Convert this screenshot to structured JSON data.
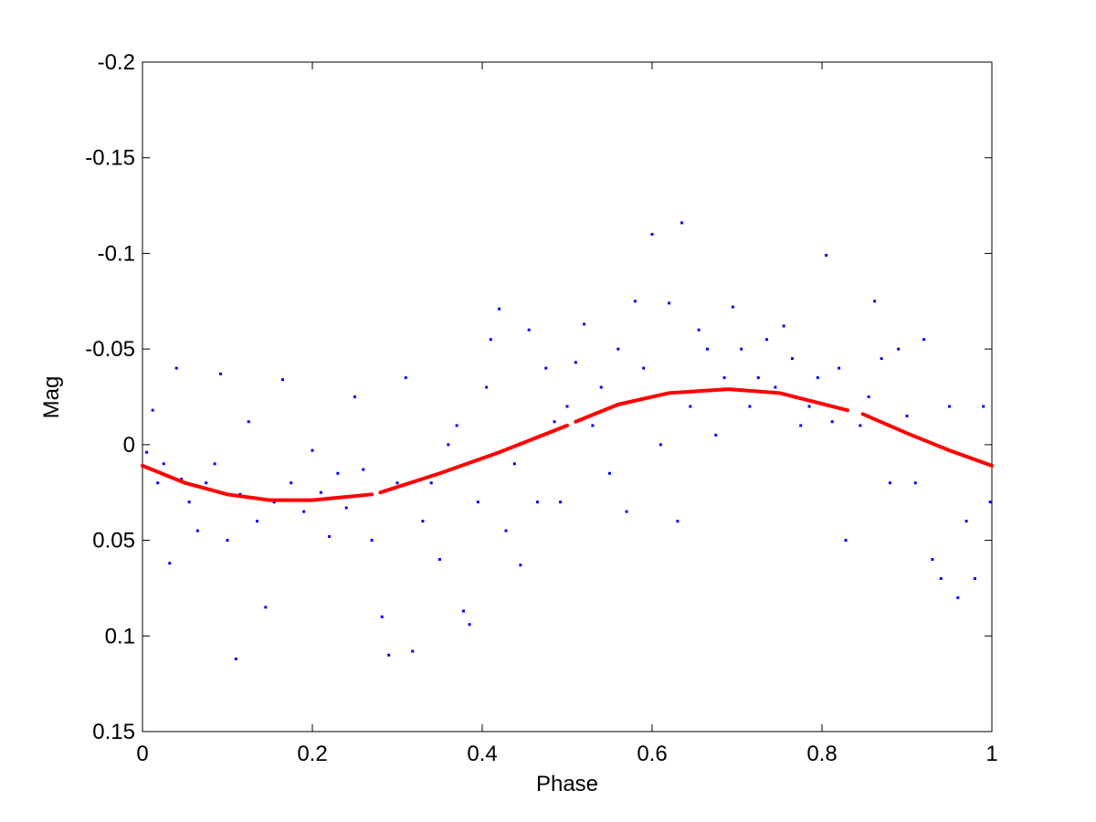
{
  "chart_data": {
    "type": "scatter",
    "title": "",
    "xlabel": "Phase",
    "ylabel": "Mag",
    "xlim": [
      0,
      1
    ],
    "ylim": [
      -0.2,
      0.15
    ],
    "y_inverted": true,
    "grid": false,
    "x_ticks": [
      0,
      0.2,
      0.4,
      0.6,
      0.8,
      1
    ],
    "x_tick_labels": [
      "0",
      "0.2",
      "0.4",
      "0.6",
      "0.8",
      "1"
    ],
    "y_ticks": [
      -0.2,
      -0.15,
      -0.1,
      -0.05,
      0,
      0.05,
      0.1,
      0.15
    ],
    "y_tick_labels": [
      "-0.2",
      "-0.15",
      "-0.1",
      "-0.05",
      "0",
      "0.05",
      "0.1",
      "0.15"
    ],
    "series": [
      {
        "kind": "scatter",
        "color": "#0000ff",
        "points": [
          [
            0.005,
            0.004
          ],
          [
            0.012,
            -0.018
          ],
          [
            0.018,
            0.02
          ],
          [
            0.025,
            0.01
          ],
          [
            0.032,
            0.062
          ],
          [
            0.04,
            -0.04
          ],
          [
            0.046,
            0.018
          ],
          [
            0.055,
            0.03
          ],
          [
            0.065,
            0.045
          ],
          [
            0.075,
            0.02
          ],
          [
            0.085,
            0.01
          ],
          [
            0.092,
            -0.037
          ],
          [
            0.1,
            0.05
          ],
          [
            0.11,
            0.112
          ],
          [
            0.115,
            0.026
          ],
          [
            0.125,
            -0.012
          ],
          [
            0.135,
            0.04
          ],
          [
            0.145,
            0.085
          ],
          [
            0.155,
            0.03
          ],
          [
            0.165,
            -0.034
          ],
          [
            0.175,
            0.02
          ],
          [
            0.19,
            0.035
          ],
          [
            0.2,
            0.003
          ],
          [
            0.21,
            0.025
          ],
          [
            0.22,
            0.048
          ],
          [
            0.23,
            0.015
          ],
          [
            0.24,
            0.033
          ],
          [
            0.25,
            -0.025
          ],
          [
            0.26,
            0.013
          ],
          [
            0.27,
            0.05
          ],
          [
            0.282,
            0.09
          ],
          [
            0.29,
            0.11
          ],
          [
            0.3,
            0.02
          ],
          [
            0.31,
            -0.035
          ],
          [
            0.318,
            0.108
          ],
          [
            0.33,
            0.04
          ],
          [
            0.34,
            0.02
          ],
          [
            0.35,
            0.06
          ],
          [
            0.36,
            0.0
          ],
          [
            0.37,
            -0.01
          ],
          [
            0.378,
            0.087
          ],
          [
            0.385,
            0.094
          ],
          [
            0.395,
            0.03
          ],
          [
            0.405,
            -0.03
          ],
          [
            0.41,
            -0.055
          ],
          [
            0.42,
            -0.071
          ],
          [
            0.428,
            0.045
          ],
          [
            0.438,
            0.01
          ],
          [
            0.445,
            0.063
          ],
          [
            0.455,
            -0.06
          ],
          [
            0.465,
            0.03
          ],
          [
            0.475,
            -0.04
          ],
          [
            0.485,
            -0.012
          ],
          [
            0.492,
            0.03
          ],
          [
            0.5,
            -0.02
          ],
          [
            0.51,
            -0.043
          ],
          [
            0.52,
            -0.063
          ],
          [
            0.53,
            -0.01
          ],
          [
            0.54,
            -0.03
          ],
          [
            0.55,
            0.015
          ],
          [
            0.56,
            -0.05
          ],
          [
            0.57,
            0.035
          ],
          [
            0.58,
            -0.075
          ],
          [
            0.59,
            -0.04
          ],
          [
            0.6,
            -0.11
          ],
          [
            0.61,
            0.0
          ],
          [
            0.62,
            -0.074
          ],
          [
            0.63,
            0.04
          ],
          [
            0.635,
            -0.116
          ],
          [
            0.645,
            -0.02
          ],
          [
            0.655,
            -0.06
          ],
          [
            0.665,
            -0.05
          ],
          [
            0.675,
            -0.005
          ],
          [
            0.685,
            -0.035
          ],
          [
            0.695,
            -0.072
          ],
          [
            0.705,
            -0.05
          ],
          [
            0.715,
            -0.02
          ],
          [
            0.725,
            -0.035
          ],
          [
            0.735,
            -0.055
          ],
          [
            0.745,
            -0.03
          ],
          [
            0.755,
            -0.062
          ],
          [
            0.765,
            -0.045
          ],
          [
            0.775,
            -0.01
          ],
          [
            0.785,
            -0.02
          ],
          [
            0.795,
            -0.035
          ],
          [
            0.805,
            -0.099
          ],
          [
            0.812,
            -0.012
          ],
          [
            0.82,
            -0.04
          ],
          [
            0.828,
            0.05
          ],
          [
            0.845,
            -0.01
          ],
          [
            0.855,
            -0.025
          ],
          [
            0.862,
            -0.075
          ],
          [
            0.87,
            -0.045
          ],
          [
            0.88,
            0.02
          ],
          [
            0.89,
            -0.05
          ],
          [
            0.9,
            -0.015
          ],
          [
            0.91,
            0.02
          ],
          [
            0.92,
            -0.055
          ],
          [
            0.93,
            0.06
          ],
          [
            0.94,
            0.07
          ],
          [
            0.95,
            -0.02
          ],
          [
            0.96,
            0.08
          ],
          [
            0.97,
            0.04
          ],
          [
            0.98,
            0.07
          ],
          [
            0.99,
            -0.02
          ],
          [
            0.998,
            0.03
          ]
        ]
      },
      {
        "kind": "line",
        "color": "#ff0000",
        "segments": [
          [
            [
              0,
              0.011
            ],
            [
              0.05,
              0.02
            ],
            [
              0.1,
              0.026
            ],
            [
              0.15,
              0.029
            ],
            [
              0.2,
              0.029
            ],
            [
              0.27,
              0.026
            ]
          ],
          [
            [
              0.28,
              0.025
            ],
            [
              0.35,
              0.015
            ],
            [
              0.42,
              0.004
            ],
            [
              0.5,
              -0.01
            ]
          ],
          [
            [
              0.51,
              -0.012
            ],
            [
              0.56,
              -0.021
            ],
            [
              0.62,
              -0.027
            ],
            [
              0.69,
              -0.029
            ],
            [
              0.75,
              -0.027
            ],
            [
              0.83,
              -0.018
            ]
          ],
          [
            [
              0.848,
              -0.016
            ],
            [
              0.9,
              -0.006
            ],
            [
              0.95,
              0.003
            ],
            [
              1,
              0.011
            ]
          ]
        ]
      }
    ]
  }
}
